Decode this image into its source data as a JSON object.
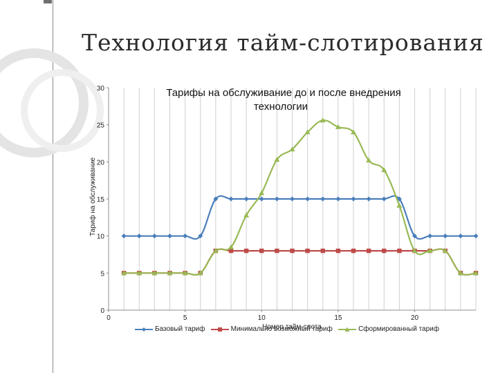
{
  "slide": {
    "title": "Технология тайм-слотирования"
  },
  "chart_data": {
    "type": "line",
    "title": "Тарифы на обслуживание до и после внедрения технологии",
    "xlabel": "Номер тайм-слота",
    "ylabel": "Тариф на обслуживание",
    "xlim": [
      0,
      24
    ],
    "ylim": [
      0,
      30
    ],
    "x_ticks": [
      0,
      5,
      10,
      15,
      20
    ],
    "y_ticks": [
      0,
      5,
      10,
      15,
      20,
      25,
      30
    ],
    "grid": "vertical",
    "legend_position": "bottom",
    "x": [
      1,
      2,
      3,
      4,
      5,
      6,
      7,
      8,
      9,
      10,
      11,
      12,
      13,
      14,
      15,
      16,
      17,
      18,
      19,
      20,
      21,
      22,
      23,
      24
    ],
    "series": [
      {
        "name": "Базовый тариф",
        "color": "#4a7ebb",
        "marker": "diamond",
        "values": [
          10,
          10,
          10,
          10,
          10,
          10,
          15,
          15,
          15,
          15,
          15,
          15,
          15,
          15,
          15,
          15,
          15,
          15,
          15,
          10,
          10,
          10,
          10,
          10
        ]
      },
      {
        "name": "Минимально возможный тариф",
        "color": "#be4b48",
        "marker": "square",
        "values": [
          5,
          5,
          5,
          5,
          5,
          5,
          8,
          8,
          8,
          8,
          8,
          8,
          8,
          8,
          8,
          8,
          8,
          8,
          8,
          8,
          8,
          8,
          5,
          5
        ]
      },
      {
        "name": "Сформированный тариф",
        "color": "#98b954",
        "marker": "triangle",
        "values": [
          5,
          5,
          5,
          5,
          5,
          5,
          8,
          8.5,
          12.8,
          15.8,
          20.3,
          21.7,
          24,
          25.6,
          24.7,
          24,
          20.2,
          18.9,
          14.1,
          8,
          8,
          8,
          5,
          5
        ]
      }
    ]
  }
}
